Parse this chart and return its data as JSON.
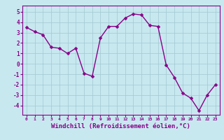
{
  "x": [
    0,
    1,
    2,
    3,
    4,
    5,
    6,
    7,
    8,
    9,
    10,
    11,
    12,
    13,
    14,
    15,
    16,
    17,
    18,
    19,
    20,
    21,
    22,
    23
  ],
  "y": [
    3.5,
    3.1,
    2.8,
    1.6,
    1.5,
    1.0,
    1.5,
    -0.9,
    -1.2,
    2.5,
    3.6,
    3.6,
    4.4,
    4.8,
    4.7,
    3.7,
    3.6,
    -0.1,
    -1.3,
    -2.8,
    -3.3,
    -4.5,
    -3.0,
    -2.0
  ],
  "line_color": "#880088",
  "marker": "D",
  "marker_size": 2.5,
  "linewidth": 1.0,
  "xlabel": "Windchill (Refroidissement éolien,°C)",
  "xlabel_fontsize": 6.5,
  "background_color": "#C8E8F0",
  "grid_color": "#A0C8D0",
  "yticks": [
    -4,
    -3,
    -2,
    -1,
    0,
    1,
    2,
    3,
    4,
    5
  ],
  "xticks": [
    0,
    1,
    2,
    3,
    4,
    5,
    6,
    7,
    8,
    9,
    10,
    11,
    12,
    13,
    14,
    15,
    16,
    17,
    18,
    19,
    20,
    21,
    22,
    23
  ],
  "xlim": [
    -0.5,
    23.5
  ],
  "ylim": [
    -4.9,
    5.6
  ]
}
